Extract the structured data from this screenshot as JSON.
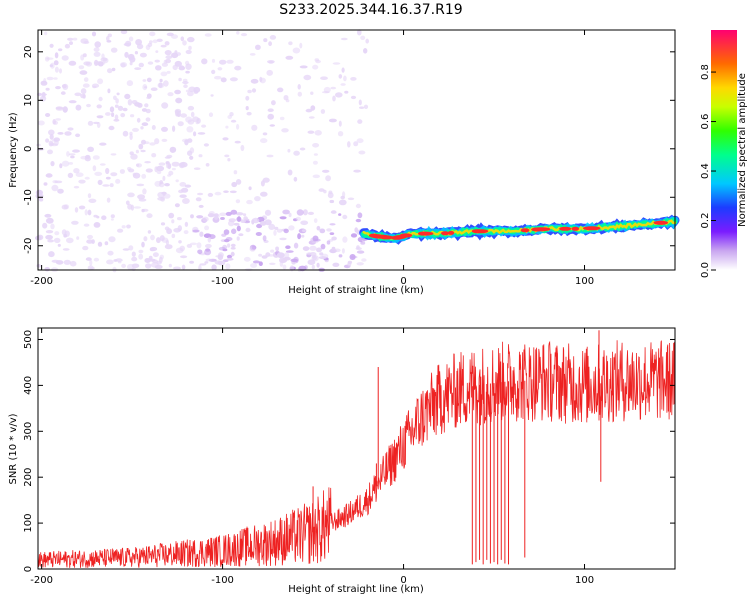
{
  "title": "S233.2025.344.16.37.R19",
  "colors": {
    "snr_line": "#ee2222",
    "axis": "#000000"
  },
  "chart_data": [
    {
      "type": "heatmap",
      "xlabel": "Height of straight line (km)",
      "ylabel": "Frequency (Hz)",
      "xlim": [
        -202,
        150
      ],
      "ylim": [
        -25,
        24.5
      ],
      "x_ticks": [
        {
          "value": -200,
          "label": "-200"
        },
        {
          "value": -100,
          "label": "-100"
        },
        {
          "value": 0,
          "label": "0"
        },
        {
          "value": 100,
          "label": "100"
        }
      ],
      "y_ticks": [
        {
          "value": -20,
          "label": "-20"
        },
        {
          "value": -10,
          "label": "-10"
        },
        {
          "value": 0,
          "label": "0"
        },
        {
          "value": 10,
          "label": "10"
        },
        {
          "value": 20,
          "label": "20"
        }
      ],
      "colorbar": {
        "label": "Normalized spectral amplitude",
        "range": [
          0,
          0.97
        ],
        "ticks": [
          {
            "value": 0.0,
            "label": "0.0"
          },
          {
            "value": 0.2,
            "label": "0.2"
          },
          {
            "value": 0.4,
            "label": "0.4"
          },
          {
            "value": 0.6,
            "label": "0.6"
          },
          {
            "value": 0.8,
            "label": "0.8"
          }
        ]
      },
      "signal_track": {
        "x": [
          -22,
          -15,
          -5,
          5,
          20,
          40,
          60,
          80,
          100,
          120,
          150
        ],
        "freq": [
          -17.5,
          -18,
          -18.5,
          -17.5,
          -17.5,
          -17,
          -17,
          -16.5,
          -16.5,
          -16,
          -15
        ]
      },
      "noise_regions": [
        {
          "x_range": [
            -202,
            -115
          ],
          "f_range": [
            -25,
            24.5
          ],
          "amplitude": 0.12
        },
        {
          "x_range": [
            -115,
            -20
          ],
          "f_range": [
            -25,
            -13
          ],
          "amplitude": 0.2
        },
        {
          "x_range": [
            -115,
            -20
          ],
          "f_range": [
            -12,
            24.5
          ],
          "amplitude": 0.05
        }
      ]
    },
    {
      "type": "line",
      "xlabel": "Height of straight line (km)",
      "ylabel": "SNR (10 * v/v)",
      "xlim": [
        -202,
        150
      ],
      "ylim": [
        0,
        525
      ],
      "x_ticks": [
        {
          "value": -200,
          "label": "-200"
        },
        {
          "value": -100,
          "label": "-100"
        },
        {
          "value": 0,
          "label": "0"
        },
        {
          "value": 100,
          "label": "100"
        }
      ],
      "y_ticks": [
        {
          "value": 0,
          "label": "0"
        },
        {
          "value": 100,
          "label": "100"
        },
        {
          "value": 200,
          "label": "200"
        },
        {
          "value": 300,
          "label": "300"
        },
        {
          "value": 400,
          "label": "400"
        },
        {
          "value": 500,
          "label": "500"
        }
      ],
      "series": [
        {
          "name": "SNR",
          "trend": {
            "x": [
              -200,
              -150,
              -100,
              -70,
              -50,
              -30,
              -20,
              -10,
              0,
              10,
              20,
              30,
              40,
              60,
              80,
              100,
              120,
              150
            ],
            "y": [
              20,
              25,
              40,
              60,
              80,
              120,
              150,
              210,
              270,
              330,
              370,
              390,
              400,
              410,
              410,
              400,
              410,
              410
            ]
          },
          "spikes": [
            {
              "x": -14,
              "y": 440
            },
            {
              "x": -15,
              "y": 230
            },
            {
              "x": -50,
              "y": 180
            },
            {
              "x": 108,
              "y": 520
            },
            {
              "x": 109,
              "y": 190
            },
            {
              "x": 85,
              "y": 470
            }
          ],
          "dropouts": [
            {
              "x": 38,
              "y": 10
            },
            {
              "x": 40,
              "y": 15
            },
            {
              "x": 42,
              "y": 20
            },
            {
              "x": 44,
              "y": 10
            },
            {
              "x": 46,
              "y": 20
            },
            {
              "x": 48,
              "y": 12
            },
            {
              "x": 50,
              "y": 15
            },
            {
              "x": 52,
              "y": 10
            },
            {
              "x": 54,
              "y": 20
            },
            {
              "x": 56,
              "y": 12
            },
            {
              "x": 58,
              "y": 10
            },
            {
              "x": 67,
              "y": 25
            }
          ]
        }
      ]
    }
  ]
}
